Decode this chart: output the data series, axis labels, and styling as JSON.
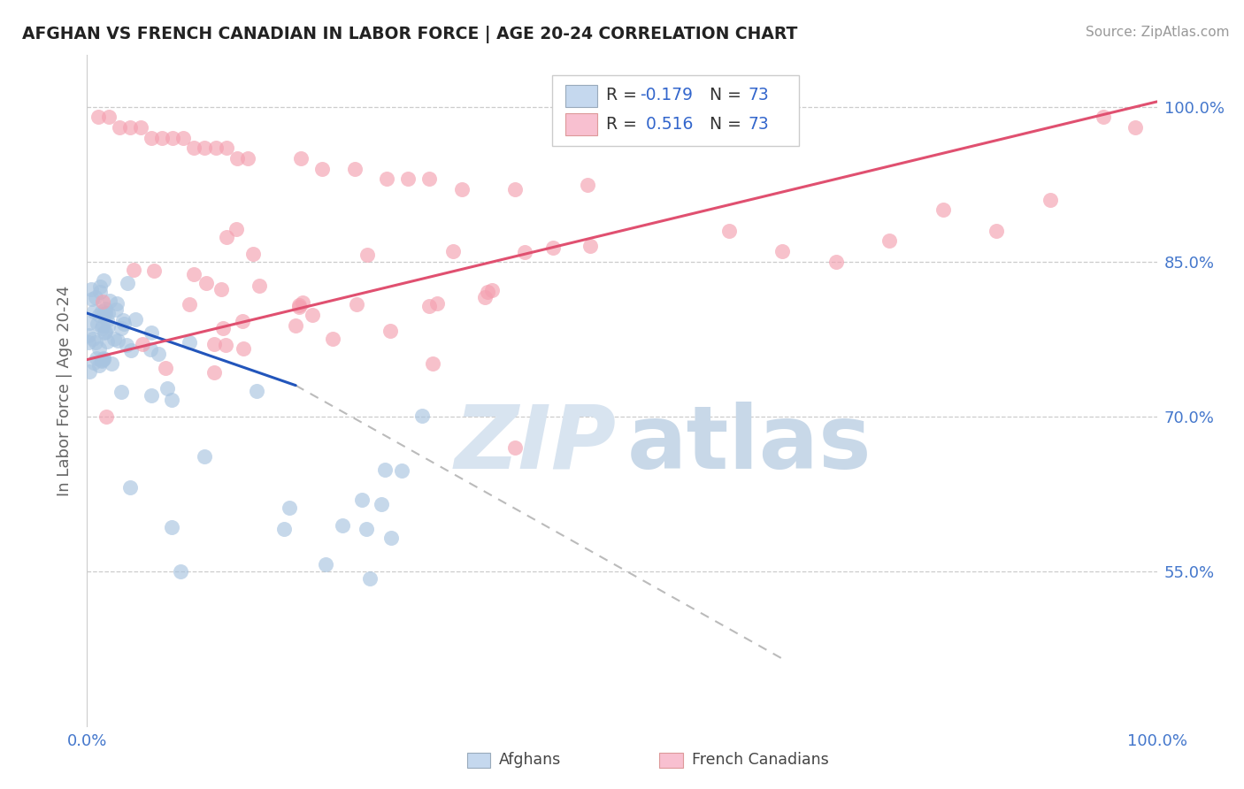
{
  "title": "AFGHAN VS FRENCH CANADIAN IN LABOR FORCE | AGE 20-24 CORRELATION CHART",
  "source": "Source: ZipAtlas.com",
  "ylabel": "In Labor Force | Age 20-24",
  "ytick_labels": [
    "55.0%",
    "70.0%",
    "85.0%",
    "100.0%"
  ],
  "ytick_values": [
    0.55,
    0.7,
    0.85,
    1.0
  ],
  "xlim": [
    0.0,
    1.0
  ],
  "ylim": [
    0.4,
    1.05
  ],
  "r_afghan": -0.179,
  "r_french": 0.516,
  "n_afghan": 73,
  "n_french": 73,
  "afghan_color": "#a8c4e0",
  "french_color": "#f4a0b0",
  "afghan_line_color": "#2255bb",
  "french_line_color": "#e05070",
  "background_color": "#ffffff",
  "legend_box_color_afghan": "#c5d8ee",
  "legend_box_color_french": "#f8c0d0",
  "watermark_zip_color": "#d8e4f0",
  "watermark_atlas_color": "#c8d8e8"
}
